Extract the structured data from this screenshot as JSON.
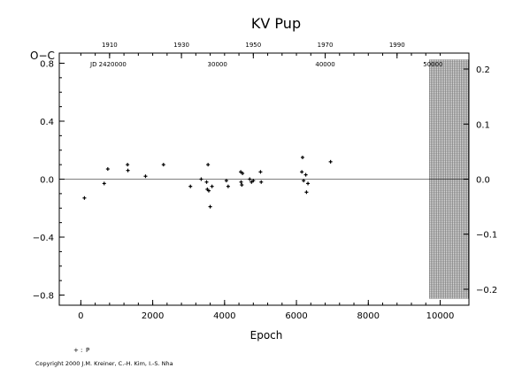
{
  "chart_data": {
    "type": "scatter",
    "title": "KV Pup",
    "ylabel": "O−C",
    "xlabel": "Epoch",
    "xlim": [
      -600,
      10800
    ],
    "ylim": [
      -0.87,
      0.87
    ],
    "x_ticks": [
      0,
      2000,
      4000,
      6000,
      8000,
      10000
    ],
    "x_tick_labels": [
      "0",
      "2000",
      "4000",
      "6000",
      "8000",
      "10000"
    ],
    "y_ticks": [
      -0.8,
      -0.4,
      0.0,
      0.4,
      0.8
    ],
    "y_tick_labels": [
      "−0.8",
      "−0.4",
      "0.0",
      "0.4",
      "0.8"
    ],
    "top_axis": {
      "year_ticks": [
        1910,
        1930,
        1950,
        1970,
        1990
      ],
      "year_epochs": [
        800,
        2800,
        4800,
        6800,
        8800
      ],
      "jd_label": "JD 2420000",
      "jd_ticks": [
        "30000",
        "40000",
        "50000"
      ],
      "jd_epochs": [
        3800,
        6800,
        9800
      ]
    },
    "right_axis": {
      "ticks": [
        -0.2,
        -0.1,
        0.0,
        0.1,
        0.2
      ],
      "tick_labels": [
        "−0.2",
        "−0.1",
        "0.0",
        "0.1",
        "0.2"
      ],
      "scale_factor": 3.8
    },
    "shaded_region": {
      "x_from": 9700,
      "x_to": 10800
    },
    "series": [
      {
        "name": "P",
        "marker": "plus",
        "x": [
          100,
          650,
          750,
          1300,
          1310,
          1800,
          2300,
          3050,
          3350,
          3500,
          3520,
          3540,
          3560,
          3600,
          3650,
          4050,
          4100,
          4450,
          4460,
          4480,
          4500,
          4700,
          4750,
          4800,
          5000,
          5020,
          6150,
          6170,
          6200,
          6260,
          6280,
          6320,
          6950
        ],
        "y": [
          -0.13,
          -0.03,
          0.07,
          0.1,
          0.06,
          0.02,
          0.1,
          -0.05,
          0.0,
          -0.02,
          -0.07,
          0.1,
          -0.08,
          -0.19,
          -0.05,
          -0.01,
          -0.05,
          0.05,
          -0.02,
          -0.04,
          0.04,
          0.0,
          -0.02,
          -0.01,
          0.05,
          -0.02,
          0.05,
          0.15,
          -0.01,
          0.03,
          -0.09,
          -0.03,
          0.12
        ]
      }
    ]
  },
  "legend": {
    "symbol": "+",
    "label": "P"
  },
  "copyright": "Copyright 2000 J.M. Kreiner, C.-H. Kim, I.-S. Nha"
}
